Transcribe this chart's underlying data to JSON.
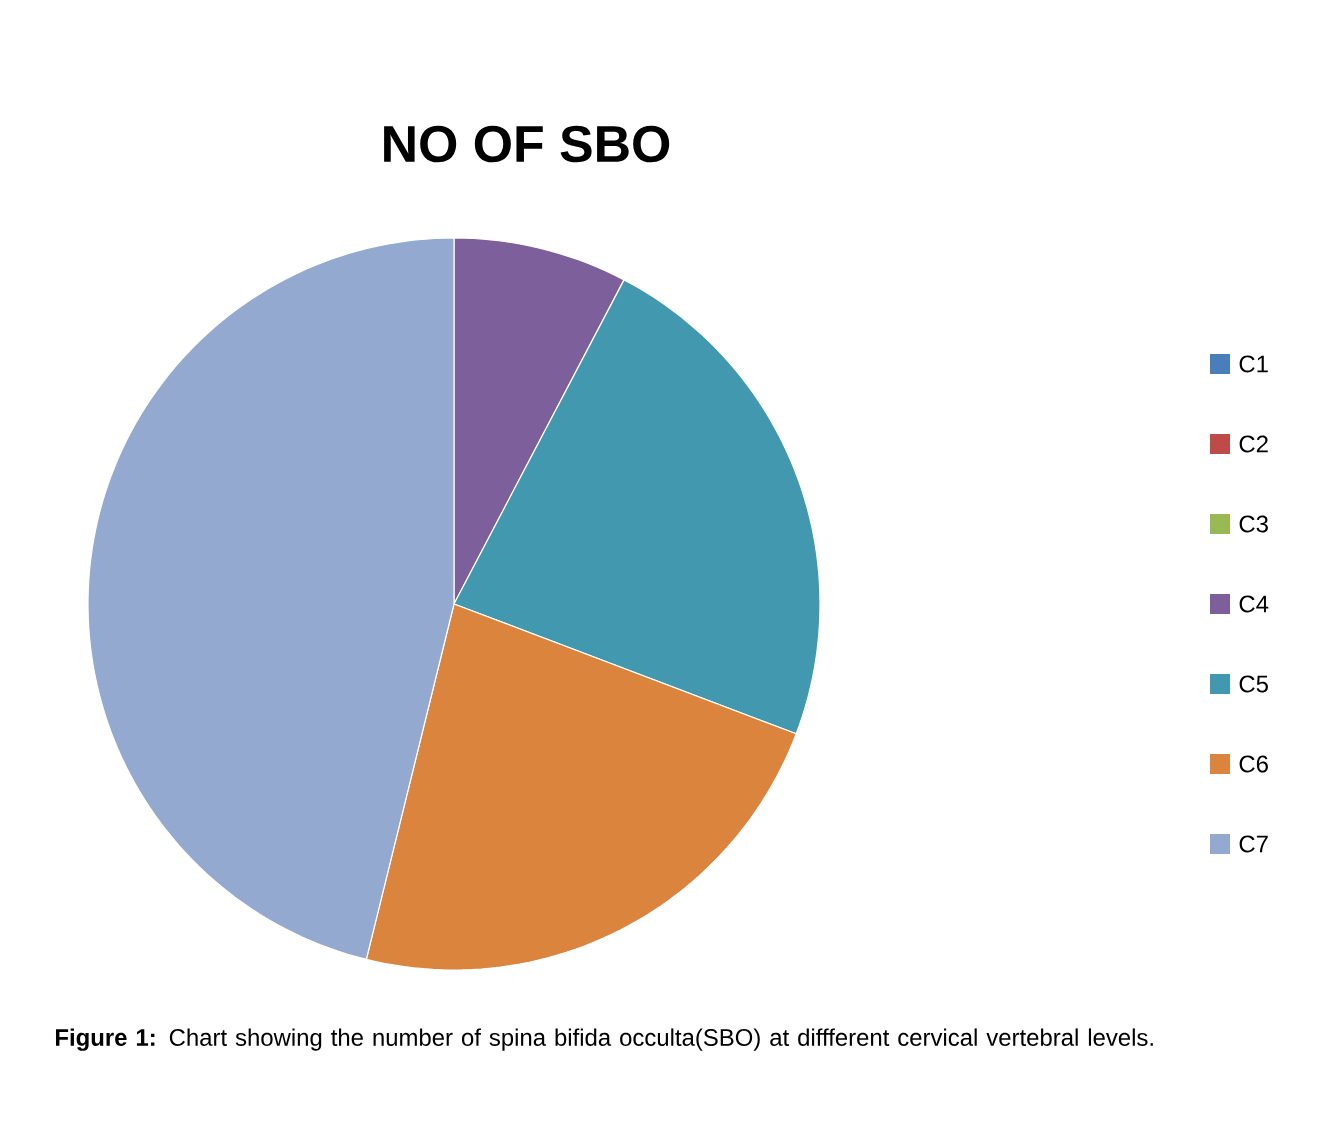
{
  "chart_data": {
    "type": "pie",
    "title": "NO OF SBO",
    "categories": [
      "C1",
      "C2",
      "C3",
      "C4",
      "C5",
      "C6",
      "C7"
    ],
    "values": [
      0,
      0,
      0,
      7.69,
      23.08,
      23.08,
      46.15
    ],
    "colors": [
      "#4a7ebb",
      "#be4b48",
      "#98b954",
      "#7d5f9c",
      "#4198af",
      "#db843d",
      "#93a9cf"
    ],
    "legend": "right",
    "annotations": [
      "**Figure 1:** Chart showing the number of spina bifida occulta(SBO) at diffferent cervical vertebral levels."
    ]
  }
}
